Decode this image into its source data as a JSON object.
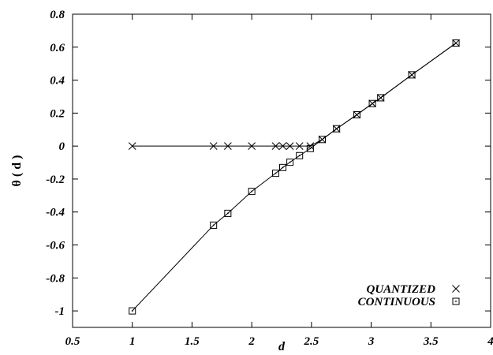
{
  "chart_data": {
    "type": "line",
    "xlabel": "d",
    "ylabel": "θ ( d )",
    "xlim": [
      0.5,
      4
    ],
    "ylim": [
      -1.1,
      0.8
    ],
    "xticks": [
      "0.5",
      "1",
      "1.5",
      "2",
      "2.5",
      "3",
      "3.5",
      "4"
    ],
    "yticks": [
      "-1",
      "-0.8",
      "-0.6",
      "-0.4",
      "-0.2",
      "0",
      "0.2",
      "0.4",
      "0.6",
      "0.8"
    ],
    "xtick_values": [
      0.5,
      1,
      1.5,
      2,
      2.5,
      3,
      3.5,
      4
    ],
    "ytick_values": [
      -1,
      -0.8,
      -0.6,
      -0.4,
      -0.2,
      0,
      0.2,
      0.4,
      0.6,
      0.8
    ],
    "grid": false,
    "legend_position": "bottom-right",
    "series": [
      {
        "name": "QUANTIZED",
        "marker": "x",
        "x": [
          1.0,
          1.68,
          1.8,
          2.0,
          2.2,
          2.26,
          2.32,
          2.4,
          2.49,
          2.59,
          2.71,
          2.88,
          3.01,
          3.08,
          3.34,
          3.71
        ],
        "y": [
          0.0,
          0.0,
          0.0,
          0.0,
          0.0,
          0.0,
          0.0,
          0.0,
          0.0,
          0.04,
          0.105,
          0.19,
          0.258,
          0.293,
          0.432,
          0.625
        ]
      },
      {
        "name": "CONTINUOUS",
        "marker": "square-dot",
        "x": [
          1.0,
          1.68,
          1.8,
          2.0,
          2.2,
          2.26,
          2.32,
          2.4,
          2.49,
          2.59,
          2.71,
          2.88,
          3.01,
          3.08,
          3.34,
          3.71
        ],
        "y": [
          -1.0,
          -0.48,
          -0.408,
          -0.275,
          -0.165,
          -0.13,
          -0.098,
          -0.058,
          -0.015,
          0.04,
          0.105,
          0.19,
          0.258,
          0.293,
          0.432,
          0.625
        ]
      }
    ]
  }
}
